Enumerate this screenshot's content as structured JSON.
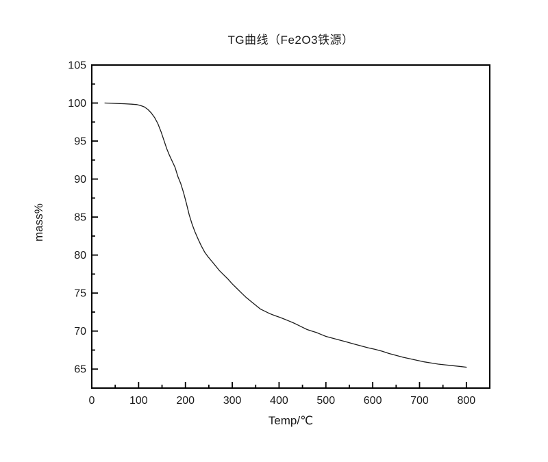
{
  "page": {
    "background_color": "#ffffff",
    "foreground_color": "#1a1a1a"
  },
  "chart_data": {
    "type": "line",
    "title": "TG曲线（Fe2O3铁源）",
    "xlabel": "Temp/℃",
    "ylabel": "mass%",
    "xlim": [
      0,
      850
    ],
    "ylim": [
      62.5,
      105
    ],
    "x_major_ticks": [
      0,
      100,
      200,
      300,
      400,
      500,
      600,
      700,
      800
    ],
    "x_minor_ticks": [
      50,
      150,
      250,
      350,
      450,
      550,
      650,
      750
    ],
    "y_major_ticks": [
      65,
      70,
      75,
      80,
      85,
      90,
      95,
      100,
      105
    ],
    "y_minor_ticks": [
      67.5,
      72.5,
      77.5,
      82.5,
      87.5,
      92.5,
      97.5,
      102.5
    ],
    "grid": false,
    "legend": "none",
    "frame": "box",
    "tick_direction": "in",
    "line_color": "#1c1c1c",
    "frame_color": "#000000",
    "series": [
      {
        "name": "TG",
        "points": [
          [
            28,
            100.0
          ],
          [
            50,
            99.95
          ],
          [
            70,
            99.9
          ],
          [
            85,
            99.85
          ],
          [
            96,
            99.8
          ],
          [
            105,
            99.65
          ],
          [
            112,
            99.5
          ],
          [
            120,
            99.15
          ],
          [
            127,
            98.7
          ],
          [
            134,
            98.1
          ],
          [
            141,
            97.3
          ],
          [
            148,
            96.2
          ],
          [
            154,
            95.1
          ],
          [
            160,
            94.0
          ],
          [
            166,
            93.1
          ],
          [
            172,
            92.3
          ],
          [
            178,
            91.5
          ],
          [
            184,
            90.3
          ],
          [
            190,
            89.4
          ],
          [
            196,
            88.2
          ],
          [
            202,
            86.8
          ],
          [
            208,
            85.3
          ],
          [
            214,
            84.1
          ],
          [
            220,
            83.1
          ],
          [
            227,
            82.1
          ],
          [
            234,
            81.2
          ],
          [
            241,
            80.4
          ],
          [
            248,
            79.8
          ],
          [
            256,
            79.2
          ],
          [
            264,
            78.6
          ],
          [
            272,
            78.0
          ],
          [
            280,
            77.5
          ],
          [
            290,
            76.9
          ],
          [
            300,
            76.2
          ],
          [
            310,
            75.6
          ],
          [
            320,
            75.0
          ],
          [
            330,
            74.4
          ],
          [
            340,
            73.9
          ],
          [
            350,
            73.4
          ],
          [
            360,
            72.9
          ],
          [
            370,
            72.6
          ],
          [
            380,
            72.3
          ],
          [
            390,
            72.05
          ],
          [
            400,
            71.85
          ],
          [
            410,
            71.6
          ],
          [
            420,
            71.35
          ],
          [
            430,
            71.1
          ],
          [
            440,
            70.8
          ],
          [
            450,
            70.5
          ],
          [
            460,
            70.2
          ],
          [
            470,
            70.0
          ],
          [
            480,
            69.8
          ],
          [
            490,
            69.55
          ],
          [
            500,
            69.3
          ],
          [
            515,
            69.05
          ],
          [
            530,
            68.8
          ],
          [
            545,
            68.55
          ],
          [
            560,
            68.3
          ],
          [
            575,
            68.05
          ],
          [
            590,
            67.8
          ],
          [
            605,
            67.6
          ],
          [
            620,
            67.35
          ],
          [
            635,
            67.05
          ],
          [
            650,
            66.8
          ],
          [
            665,
            66.55
          ],
          [
            680,
            66.35
          ],
          [
            695,
            66.15
          ],
          [
            710,
            65.95
          ],
          [
            725,
            65.8
          ],
          [
            740,
            65.65
          ],
          [
            755,
            65.55
          ],
          [
            770,
            65.45
          ],
          [
            785,
            65.35
          ],
          [
            800,
            65.25
          ]
        ]
      }
    ]
  }
}
